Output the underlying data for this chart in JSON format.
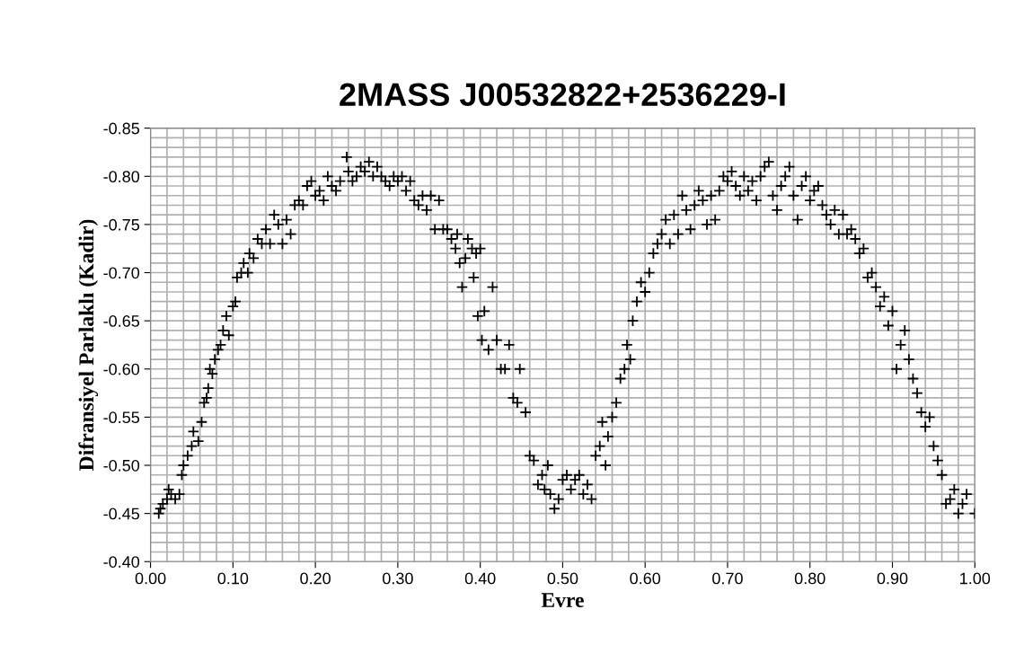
{
  "chart_data": {
    "type": "scatter",
    "title": "2MASS J00532822+2536229-I",
    "xlabel": "Evre",
    "ylabel": "Difransiyel Parlaklı (Kadir)",
    "marker": "cross",
    "grid": true,
    "color": "#000000",
    "xlim": [
      0,
      1
    ],
    "ylim": [
      -0.4,
      -0.85
    ],
    "xticks": [
      {
        "value": 0,
        "label": "0.00"
      },
      {
        "value": 0.02,
        "label": null
      },
      {
        "value": 0.04,
        "label": null
      },
      {
        "value": 0.06,
        "label": null
      },
      {
        "value": 0.08,
        "label": null
      },
      {
        "value": 0.1,
        "label": "0.10"
      },
      {
        "value": 0.12,
        "label": null
      },
      {
        "value": 0.14,
        "label": null
      },
      {
        "value": 0.16,
        "label": null
      },
      {
        "value": 0.18,
        "label": null
      },
      {
        "value": 0.2,
        "label": "0.20"
      },
      {
        "value": 0.22,
        "label": null
      },
      {
        "value": 0.24,
        "label": null
      },
      {
        "value": 0.26,
        "label": null
      },
      {
        "value": 0.28,
        "label": null
      },
      {
        "value": 0.3,
        "label": "0.30"
      },
      {
        "value": 0.32,
        "label": null
      },
      {
        "value": 0.34,
        "label": null
      },
      {
        "value": 0.36,
        "label": null
      },
      {
        "value": 0.38,
        "label": null
      },
      {
        "value": 0.4,
        "label": "0.40"
      },
      {
        "value": 0.42,
        "label": null
      },
      {
        "value": 0.44,
        "label": null
      },
      {
        "value": 0.46,
        "label": null
      },
      {
        "value": 0.48,
        "label": null
      },
      {
        "value": 0.5,
        "label": "0.50"
      },
      {
        "value": 0.52,
        "label": null
      },
      {
        "value": 0.54,
        "label": null
      },
      {
        "value": 0.56,
        "label": null
      },
      {
        "value": 0.58,
        "label": null
      },
      {
        "value": 0.6,
        "label": "0.60"
      },
      {
        "value": 0.62,
        "label": null
      },
      {
        "value": 0.64,
        "label": null
      },
      {
        "value": 0.66,
        "label": null
      },
      {
        "value": 0.68,
        "label": null
      },
      {
        "value": 0.7,
        "label": "0.70"
      },
      {
        "value": 0.72,
        "label": null
      },
      {
        "value": 0.74,
        "label": null
      },
      {
        "value": 0.76,
        "label": null
      },
      {
        "value": 0.78,
        "label": null
      },
      {
        "value": 0.8,
        "label": "0.80"
      },
      {
        "value": 0.82,
        "label": null
      },
      {
        "value": 0.84,
        "label": null
      },
      {
        "value": 0.86,
        "label": null
      },
      {
        "value": 0.88,
        "label": null
      },
      {
        "value": 0.9,
        "label": "0.90"
      },
      {
        "value": 0.92,
        "label": null
      },
      {
        "value": 0.94,
        "label": null
      },
      {
        "value": 0.96,
        "label": null
      },
      {
        "value": 0.98,
        "label": null
      },
      {
        "value": 1,
        "label": "1.00"
      }
    ],
    "yticks": [
      {
        "value": -0.85,
        "label": "-0.85"
      },
      {
        "value": -0.84,
        "label": null
      },
      {
        "value": -0.83,
        "label": null
      },
      {
        "value": -0.82,
        "label": null
      },
      {
        "value": -0.81,
        "label": null
      },
      {
        "value": -0.8,
        "label": "-0.80"
      },
      {
        "value": -0.79,
        "label": null
      },
      {
        "value": -0.78,
        "label": null
      },
      {
        "value": -0.77,
        "label": null
      },
      {
        "value": -0.76,
        "label": null
      },
      {
        "value": -0.75,
        "label": "-0.75"
      },
      {
        "value": -0.74,
        "label": null
      },
      {
        "value": -0.73,
        "label": null
      },
      {
        "value": -0.72,
        "label": null
      },
      {
        "value": -0.71,
        "label": null
      },
      {
        "value": -0.7,
        "label": "-0.70"
      },
      {
        "value": -0.69,
        "label": null
      },
      {
        "value": -0.68,
        "label": null
      },
      {
        "value": -0.67,
        "label": null
      },
      {
        "value": -0.66,
        "label": null
      },
      {
        "value": -0.65,
        "label": "-0.65"
      },
      {
        "value": -0.64,
        "label": null
      },
      {
        "value": -0.63,
        "label": null
      },
      {
        "value": -0.62,
        "label": null
      },
      {
        "value": -0.61,
        "label": null
      },
      {
        "value": -0.6,
        "label": "-0.60"
      },
      {
        "value": -0.59,
        "label": null
      },
      {
        "value": -0.58,
        "label": null
      },
      {
        "value": -0.57,
        "label": null
      },
      {
        "value": -0.56,
        "label": null
      },
      {
        "value": -0.55,
        "label": "-0.55"
      },
      {
        "value": -0.54,
        "label": null
      },
      {
        "value": -0.53,
        "label": null
      },
      {
        "value": -0.52,
        "label": null
      },
      {
        "value": -0.51,
        "label": null
      },
      {
        "value": -0.5,
        "label": "-0.50"
      },
      {
        "value": -0.49,
        "label": null
      },
      {
        "value": -0.48,
        "label": null
      },
      {
        "value": -0.47,
        "label": null
      },
      {
        "value": -0.46,
        "label": null
      },
      {
        "value": -0.45,
        "label": "-0.45"
      },
      {
        "value": -0.44,
        "label": null
      },
      {
        "value": -0.43,
        "label": null
      },
      {
        "value": -0.42,
        "label": null
      },
      {
        "value": -0.41,
        "label": null
      },
      {
        "value": -0.4,
        "label": "-0.40"
      }
    ],
    "x": [
      0.01,
      0.012,
      0.015,
      0.02,
      0.022,
      0.025,
      0.03,
      0.035,
      0.038,
      0.04,
      0.045,
      0.05,
      0.052,
      0.058,
      0.062,
      0.065,
      0.068,
      0.07,
      0.072,
      0.075,
      0.078,
      0.082,
      0.085,
      0.088,
      0.092,
      0.095,
      0.1,
      0.103,
      0.105,
      0.11,
      0.113,
      0.118,
      0.12,
      0.125,
      0.13,
      0.135,
      0.14,
      0.145,
      0.15,
      0.155,
      0.16,
      0.165,
      0.17,
      0.175,
      0.18,
      0.185,
      0.19,
      0.195,
      0.2,
      0.205,
      0.21,
      0.215,
      0.22,
      0.225,
      0.23,
      0.238,
      0.24,
      0.245,
      0.25,
      0.255,
      0.26,
      0.265,
      0.27,
      0.275,
      0.28,
      0.285,
      0.29,
      0.295,
      0.3,
      0.305,
      0.31,
      0.315,
      0.32,
      0.325,
      0.33,
      0.335,
      0.34,
      0.345,
      0.35,
      0.355,
      0.36,
      0.365,
      0.37,
      0.372,
      0.375,
      0.378,
      0.382,
      0.385,
      0.39,
      0.392,
      0.395,
      0.397,
      0.4,
      0.402,
      0.405,
      0.41,
      0.415,
      0.42,
      0.425,
      0.43,
      0.435,
      0.44,
      0.445,
      0.448,
      0.455,
      0.46,
      0.465,
      0.47,
      0.475,
      0.478,
      0.482,
      0.485,
      0.49,
      0.495,
      0.5,
      0.505,
      0.51,
      0.515,
      0.52,
      0.525,
      0.53,
      0.535,
      0.54,
      0.545,
      0.548,
      0.552,
      0.555,
      0.56,
      0.565,
      0.57,
      0.575,
      0.578,
      0.582,
      0.585,
      0.59,
      0.595,
      0.6,
      0.605,
      0.61,
      0.615,
      0.62,
      0.625,
      0.63,
      0.635,
      0.64,
      0.645,
      0.65,
      0.655,
      0.66,
      0.665,
      0.67,
      0.675,
      0.68,
      0.685,
      0.69,
      0.695,
      0.7,
      0.705,
      0.71,
      0.715,
      0.72,
      0.725,
      0.73,
      0.735,
      0.74,
      0.745,
      0.75,
      0.755,
      0.76,
      0.765,
      0.77,
      0.775,
      0.78,
      0.785,
      0.79,
      0.795,
      0.8,
      0.805,
      0.81,
      0.815,
      0.82,
      0.825,
      0.83,
      0.835,
      0.84,
      0.845,
      0.85,
      0.855,
      0.86,
      0.865,
      0.87,
      0.875,
      0.88,
      0.885,
      0.89,
      0.895,
      0.9,
      0.905,
      0.91,
      0.915,
      0.92,
      0.925,
      0.93,
      0.935,
      0.94,
      0.945,
      0.95,
      0.955,
      0.96,
      0.965,
      0.97,
      0.975,
      0.98,
      0.985,
      0.99,
      1.0
    ],
    "values": [
      -0.45,
      -0.455,
      -0.46,
      -0.465,
      -0.475,
      -0.47,
      -0.465,
      -0.47,
      -0.49,
      -0.5,
      -0.51,
      -0.52,
      -0.535,
      -0.525,
      -0.545,
      -0.565,
      -0.57,
      -0.58,
      -0.6,
      -0.595,
      -0.61,
      -0.62,
      -0.625,
      -0.64,
      -0.655,
      -0.635,
      -0.665,
      -0.67,
      -0.695,
      -0.7,
      -0.71,
      -0.7,
      -0.72,
      -0.715,
      -0.735,
      -0.73,
      -0.745,
      -0.73,
      -0.76,
      -0.75,
      -0.73,
      -0.755,
      -0.74,
      -0.77,
      -0.775,
      -0.77,
      -0.79,
      -0.795,
      -0.78,
      -0.785,
      -0.775,
      -0.8,
      -0.79,
      -0.785,
      -0.795,
      -0.82,
      -0.805,
      -0.795,
      -0.8,
      -0.81,
      -0.805,
      -0.815,
      -0.8,
      -0.81,
      -0.8,
      -0.795,
      -0.79,
      -0.8,
      -0.795,
      -0.8,
      -0.785,
      -0.795,
      -0.775,
      -0.77,
      -0.78,
      -0.765,
      -0.78,
      -0.745,
      -0.775,
      -0.745,
      -0.745,
      -0.735,
      -0.725,
      -0.74,
      -0.71,
      -0.685,
      -0.715,
      -0.735,
      -0.725,
      -0.695,
      -0.72,
      -0.655,
      -0.725,
      -0.63,
      -0.66,
      -0.62,
      -0.685,
      -0.63,
      -0.6,
      -0.6,
      -0.625,
      -0.57,
      -0.565,
      -0.6,
      -0.555,
      -0.51,
      -0.505,
      -0.48,
      -0.49,
      -0.475,
      -0.5,
      -0.47,
      -0.455,
      -0.465,
      -0.485,
      -0.49,
      -0.475,
      -0.485,
      -0.49,
      -0.47,
      -0.48,
      -0.465,
      -0.51,
      -0.52,
      -0.545,
      -0.5,
      -0.53,
      -0.55,
      -0.565,
      -0.59,
      -0.6,
      -0.625,
      -0.61,
      -0.65,
      -0.67,
      -0.69,
      -0.68,
      -0.7,
      -0.72,
      -0.73,
      -0.74,
      -0.755,
      -0.73,
      -0.76,
      -0.74,
      -0.78,
      -0.765,
      -0.745,
      -0.77,
      -0.785,
      -0.775,
      -0.75,
      -0.78,
      -0.755,
      -0.785,
      -0.8,
      -0.795,
      -0.805,
      -0.79,
      -0.78,
      -0.8,
      -0.785,
      -0.795,
      -0.775,
      -0.8,
      -0.81,
      -0.815,
      -0.78,
      -0.765,
      -0.79,
      -0.8,
      -0.81,
      -0.78,
      -0.755,
      -0.79,
      -0.8,
      -0.775,
      -0.785,
      -0.79,
      -0.77,
      -0.76,
      -0.75,
      -0.765,
      -0.74,
      -0.76,
      -0.74,
      -0.745,
      -0.735,
      -0.72,
      -0.725,
      -0.695,
      -0.7,
      -0.685,
      -0.665,
      -0.675,
      -0.645,
      -0.66,
      -0.6,
      -0.625,
      -0.64,
      -0.61,
      -0.59,
      -0.575,
      -0.555,
      -0.54,
      -0.55,
      -0.52,
      -0.505,
      -0.49,
      -0.46,
      -0.465,
      -0.475,
      -0.45,
      -0.46,
      -0.47,
      -0.45
    ]
  }
}
